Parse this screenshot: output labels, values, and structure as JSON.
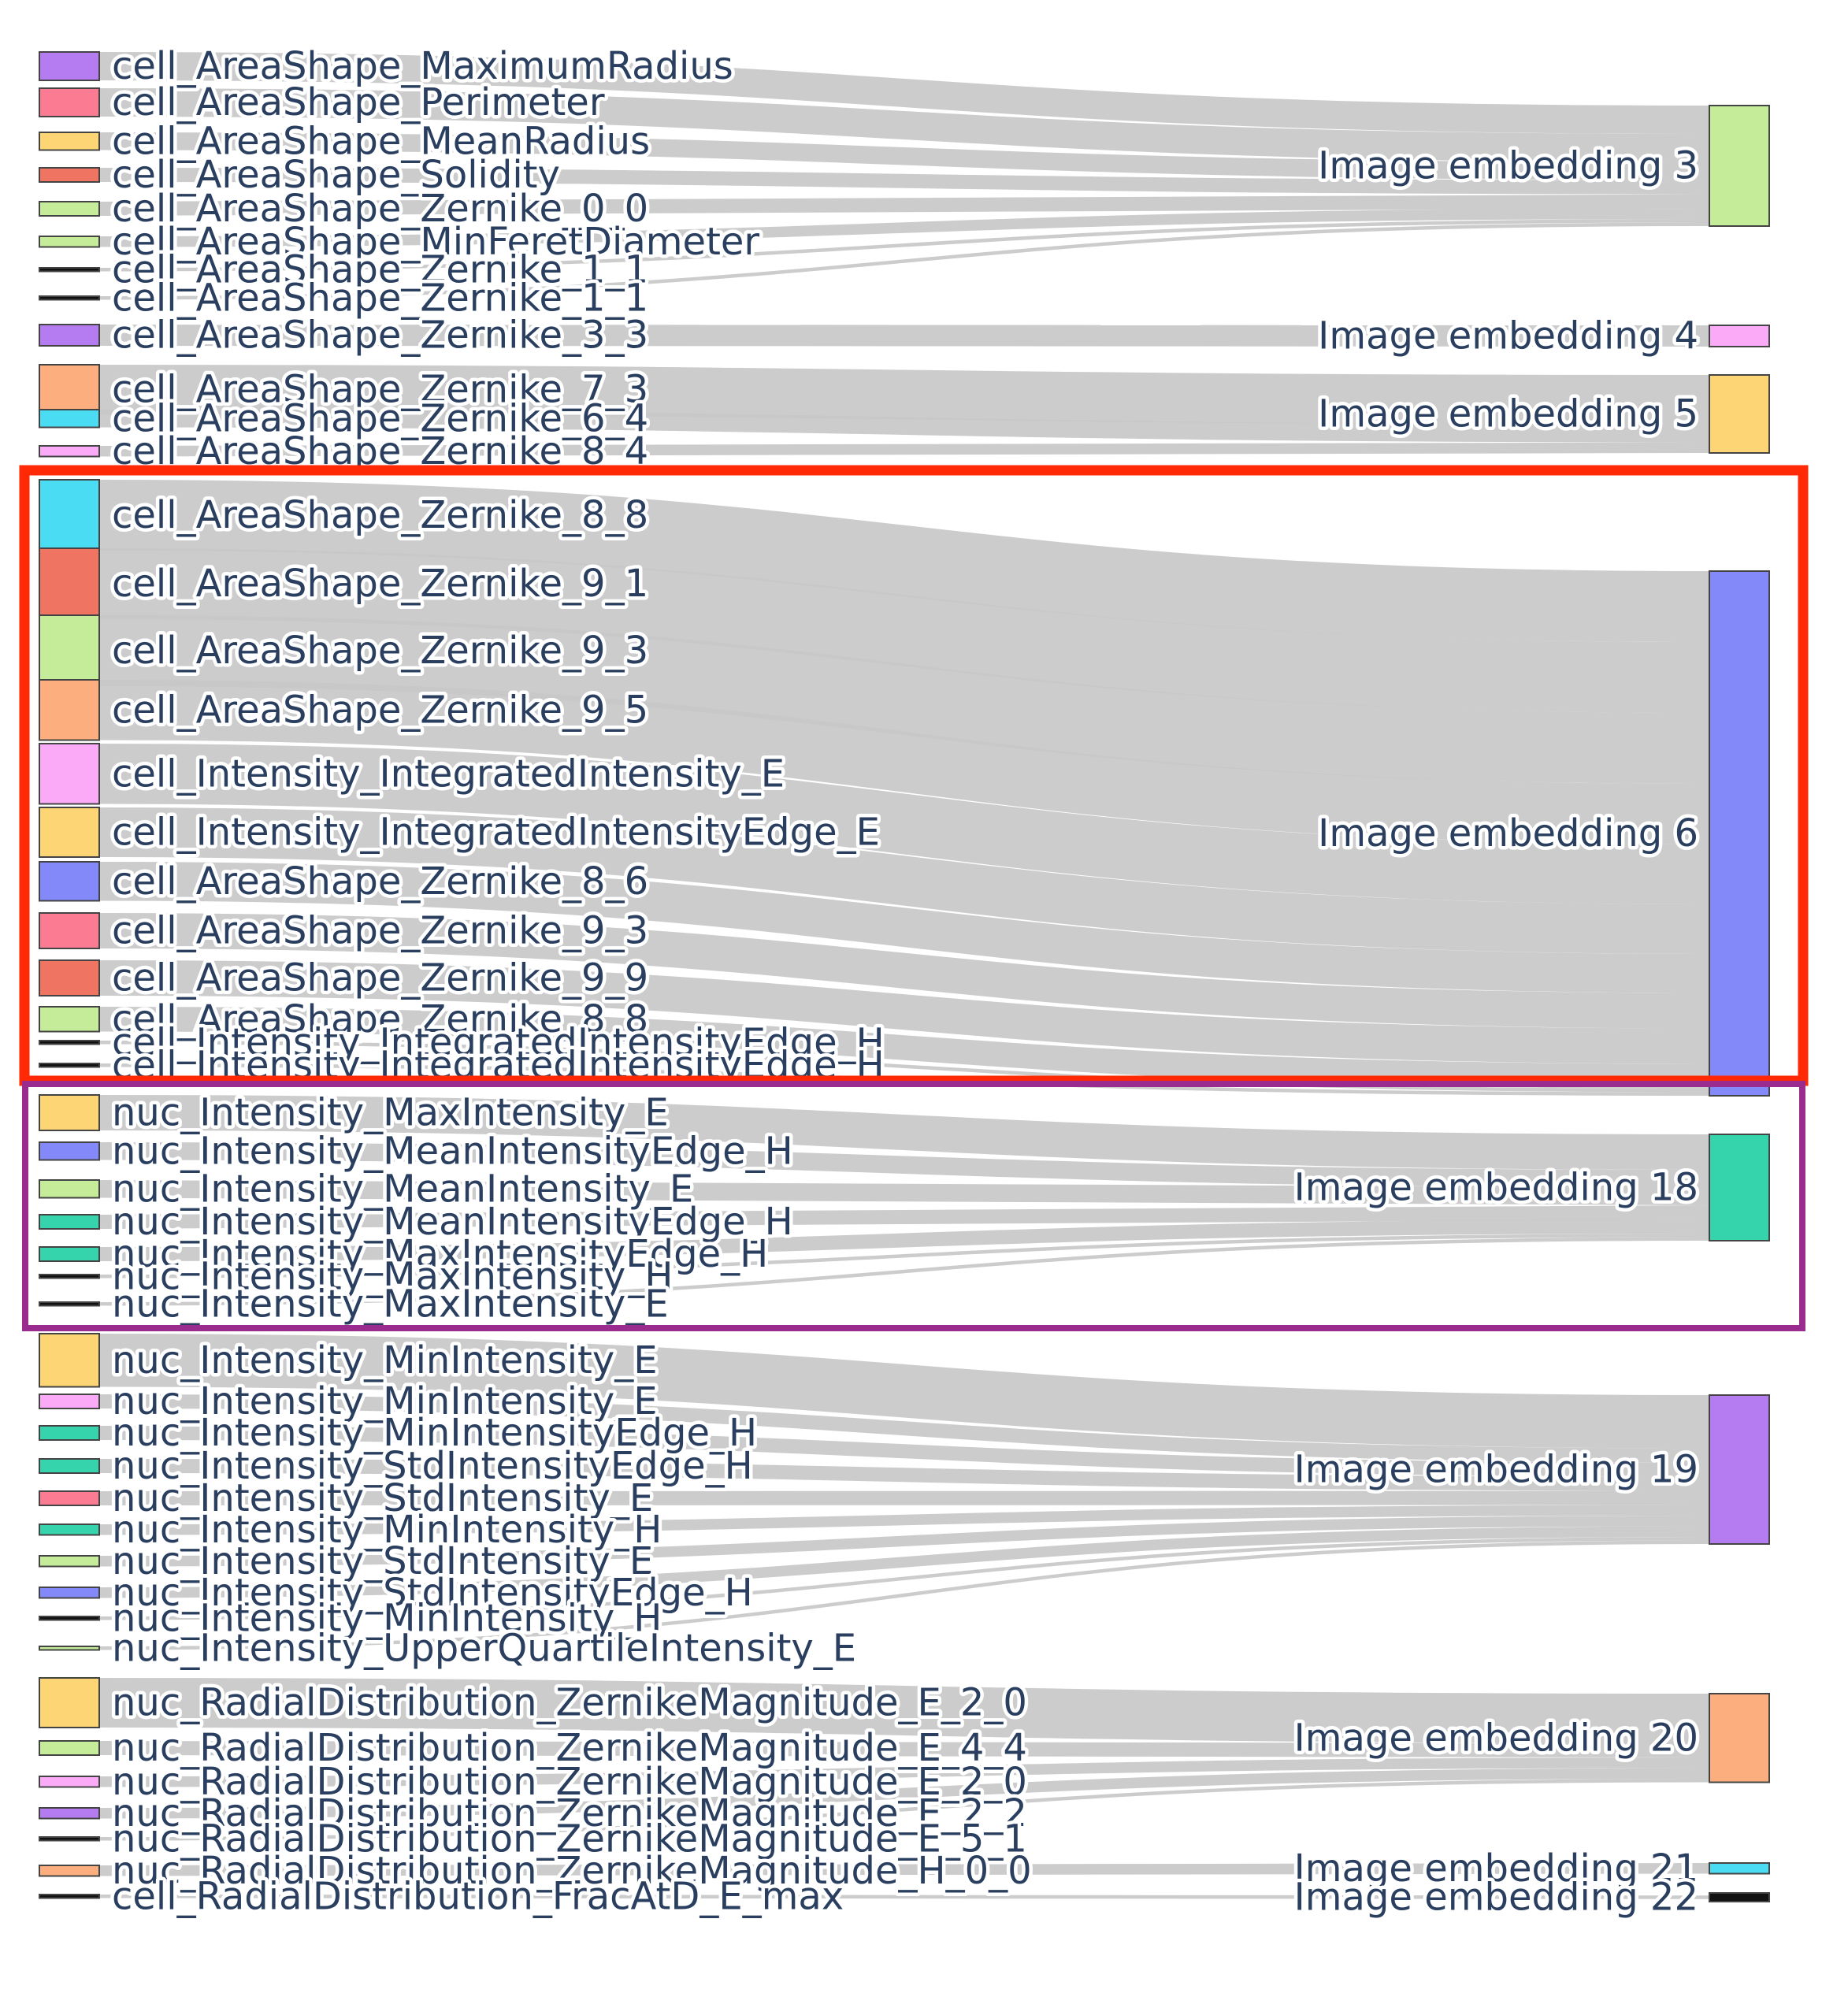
{
  "diagram": {
    "type": "sankey",
    "sources": [
      {
        "id": "s0",
        "label": "cell_AreaShape_MaximumRadius",
        "color": "#b57cf2"
      },
      {
        "id": "s1",
        "label": "cell_AreaShape_Perimeter",
        "color": "#fb7b92"
      },
      {
        "id": "s2",
        "label": "cell_AreaShape_MeanRadius",
        "color": "#fdd575"
      },
      {
        "id": "s3",
        "label": "cell_AreaShape_Solidity",
        "color": "#ef7462"
      },
      {
        "id": "s4",
        "label": "cell_AreaShape_Zernike_0_0",
        "color": "#c5ec98"
      },
      {
        "id": "s5",
        "label": "cell_AreaShape_MinFeretDiameter",
        "color": "#c5ec98"
      },
      {
        "id": "s6",
        "label": "cell_AreaShape_Zernike_1_1",
        "color": "#111111"
      },
      {
        "id": "s7",
        "label": "cell_AreaShape_Zernike_1_1",
        "color": "#111111"
      },
      {
        "id": "s8",
        "label": "cell_AreaShape_Zernike_3_3",
        "color": "#b57cf2"
      },
      {
        "id": "s9",
        "label": "cell_AreaShape_Zernike_7_3",
        "color": "#fdae7e"
      },
      {
        "id": "s10",
        "label": "cell_AreaShape_Zernike_6_4",
        "color": "#4adcf3"
      },
      {
        "id": "s11",
        "label": "cell_AreaShape_Zernike_8_4",
        "color": "#fbaaf7"
      },
      {
        "id": "s12",
        "label": "cell_AreaShape_Zernike_8_8",
        "color": "#4adcf3"
      },
      {
        "id": "s13",
        "label": "cell_AreaShape_Zernike_9_1",
        "color": "#ef7462"
      },
      {
        "id": "s14",
        "label": "cell_AreaShape_Zernike_9_3",
        "color": "#c5ec98"
      },
      {
        "id": "s15",
        "label": "cell_AreaShape_Zernike_9_5",
        "color": "#fdae7e"
      },
      {
        "id": "s16",
        "label": "cell_Intensity_IntegratedIntensity_E",
        "color": "#fbaaf7"
      },
      {
        "id": "s17",
        "label": "cell_Intensity_IntegratedIntensityEdge_E",
        "color": "#fdd575"
      },
      {
        "id": "s18",
        "label": "cell_AreaShape_Zernike_8_6",
        "color": "#8489fa"
      },
      {
        "id": "s19",
        "label": "cell_AreaShape_Zernike_9_3",
        "color": "#fb7b92"
      },
      {
        "id": "s20",
        "label": "cell_AreaShape_Zernike_9_9",
        "color": "#ef7462"
      },
      {
        "id": "s21",
        "label": "cell_AreaShape_Zernike_8_8",
        "color": "#c5ec98"
      },
      {
        "id": "s22",
        "label": "cell_Intensity_IntegratedIntensityEdge_H",
        "color": "#111111"
      },
      {
        "id": "s23",
        "label": "cell_Intensity_IntegratedIntensityEdge_H",
        "color": "#111111"
      },
      {
        "id": "s24",
        "label": "nuc_Intensity_MaxIntensity_E",
        "color": "#fdd575"
      },
      {
        "id": "s25",
        "label": "nuc_Intensity_MeanIntensityEdge_H",
        "color": "#8489fa"
      },
      {
        "id": "s26",
        "label": "nuc_Intensity_MeanIntensity_E",
        "color": "#c5ec98"
      },
      {
        "id": "s27",
        "label": "nuc_Intensity_MeanIntensityEdge_H",
        "color": "#35d4ac"
      },
      {
        "id": "s28",
        "label": "nuc_Intensity_MaxIntensityEdge_H",
        "color": "#35d4ac"
      },
      {
        "id": "s29",
        "label": "nuc_Intensity_MaxIntensity_H",
        "color": "#111111"
      },
      {
        "id": "s30",
        "label": "nuc_Intensity_MaxIntensity_E",
        "color": "#111111"
      },
      {
        "id": "s31",
        "label": "nuc_Intensity_MinIntensity_E",
        "color": "#fdd575"
      },
      {
        "id": "s32",
        "label": "nuc_Intensity_MinIntensity_E",
        "color": "#fbaaf7"
      },
      {
        "id": "s33",
        "label": "nuc_Intensity_MinIntensityEdge_H",
        "color": "#35d4ac"
      },
      {
        "id": "s34",
        "label": "nuc_Intensity_StdIntensityEdge_H",
        "color": "#35d4ac"
      },
      {
        "id": "s35",
        "label": "nuc_Intensity_StdIntensity_E",
        "color": "#fb7b92"
      },
      {
        "id": "s36",
        "label": "nuc_Intensity_MinIntensity_H",
        "color": "#35d4ac"
      },
      {
        "id": "s37",
        "label": "nuc_Intensity_StdIntensity_E",
        "color": "#c5ec98"
      },
      {
        "id": "s38",
        "label": "nuc_Intensity_StdIntensityEdge_H",
        "color": "#8489fa"
      },
      {
        "id": "s39",
        "label": "nuc_Intensity_MinIntensity_H",
        "color": "#111111"
      },
      {
        "id": "s40",
        "label": "nuc_Intensity_UpperQuartileIntensity_E",
        "color": "#c5ec98"
      },
      {
        "id": "s41",
        "label": "nuc_RadialDistribution_ZernikeMagnitude_E_2_0",
        "color": "#fdd575"
      },
      {
        "id": "s42",
        "label": "nuc_RadialDistribution_ZernikeMagnitude_E_4_4",
        "color": "#c5ec98"
      },
      {
        "id": "s43",
        "label": "nuc_RadialDistribution_ZernikeMagnitude_E_2_0",
        "color": "#fbaaf7"
      },
      {
        "id": "s44",
        "label": "nuc_RadialDistribution_ZernikeMagnitude_E_2_2",
        "color": "#b57cf2"
      },
      {
        "id": "s45",
        "label": "nuc_RadialDistribution_ZernikeMagnitude_E_5_1",
        "color": "#111111"
      },
      {
        "id": "s46",
        "label": "nuc_RadialDistribution_ZernikeMagnitude_H_0_0",
        "color": "#fdae7e"
      },
      {
        "id": "s47",
        "label": "cell_RadialDistribution_FracAtD_E_max",
        "color": "#111111"
      }
    ],
    "targets": [
      {
        "id": "t3",
        "label": "Image embedding 3",
        "color": "#c5ec98"
      },
      {
        "id": "t4",
        "label": "Image embedding 4",
        "color": "#fbaaf7"
      },
      {
        "id": "t5",
        "label": "Image embedding 5",
        "color": "#fdd575"
      },
      {
        "id": "t6",
        "label": "Image embedding 6",
        "color": "#8489fa"
      },
      {
        "id": "t18",
        "label": "Image embedding 18",
        "color": "#35d4ac"
      },
      {
        "id": "t19",
        "label": "Image embedding 19",
        "color": "#b57cf2"
      },
      {
        "id": "t20",
        "label": "Image embedding 20",
        "color": "#fdae7e"
      },
      {
        "id": "t21",
        "label": "Image embedding 21",
        "color": "#4adcf3"
      },
      {
        "id": "t22",
        "label": "Image embedding 22",
        "color": "#111111"
      }
    ],
    "flows": [
      [
        "s0",
        "t3",
        8
      ],
      [
        "s1",
        "t3",
        8
      ],
      [
        "s2",
        "t3",
        5
      ],
      [
        "s3",
        "t3",
        4
      ],
      [
        "s4",
        "t3",
        4
      ],
      [
        "s5",
        "t3",
        3
      ],
      [
        "s6",
        "t3",
        1
      ],
      [
        "s7",
        "t3",
        1
      ],
      [
        "s8",
        "t4",
        6
      ],
      [
        "s9",
        "t5",
        14
      ],
      [
        "s10",
        "t5",
        5
      ],
      [
        "s11",
        "t5",
        3
      ],
      [
        "s12",
        "t6",
        20
      ],
      [
        "s13",
        "t6",
        20
      ],
      [
        "s14",
        "t6",
        20
      ],
      [
        "s15",
        "t6",
        17
      ],
      [
        "s16",
        "t6",
        17
      ],
      [
        "s17",
        "t6",
        14
      ],
      [
        "s18",
        "t6",
        11
      ],
      [
        "s19",
        "t6",
        10
      ],
      [
        "s20",
        "t6",
        10
      ],
      [
        "s21",
        "t6",
        7
      ],
      [
        "s22",
        "t6",
        1
      ],
      [
        "s23",
        "t6",
        1
      ],
      [
        "s24",
        "t18",
        10
      ],
      [
        "s25",
        "t18",
        5
      ],
      [
        "s26",
        "t18",
        5
      ],
      [
        "s27",
        "t18",
        4
      ],
      [
        "s28",
        "t18",
        4
      ],
      [
        "s29",
        "t18",
        1
      ],
      [
        "s30",
        "t18",
        1
      ],
      [
        "s31",
        "t19",
        15
      ],
      [
        "s32",
        "t19",
        4
      ],
      [
        "s33",
        "t19",
        4
      ],
      [
        "s34",
        "t19",
        4
      ],
      [
        "s35",
        "t19",
        4
      ],
      [
        "s36",
        "t19",
        3
      ],
      [
        "s37",
        "t19",
        3
      ],
      [
        "s38",
        "t19",
        3
      ],
      [
        "s39",
        "t19",
        1
      ],
      [
        "s40",
        "t19",
        1
      ],
      [
        "s41",
        "t20",
        14
      ],
      [
        "s42",
        "t20",
        4
      ],
      [
        "s43",
        "t20",
        3
      ],
      [
        "s44",
        "t20",
        3
      ],
      [
        "s45",
        "t20",
        1
      ],
      [
        "s46",
        "t21",
        3
      ],
      [
        "s47",
        "t22",
        1
      ]
    ]
  },
  "colors": {
    "label_text": "#2a3f5f",
    "link": "#c8c8c8",
    "highlight_red": "#ff2a05",
    "highlight_purple": "#9b2c8f"
  }
}
